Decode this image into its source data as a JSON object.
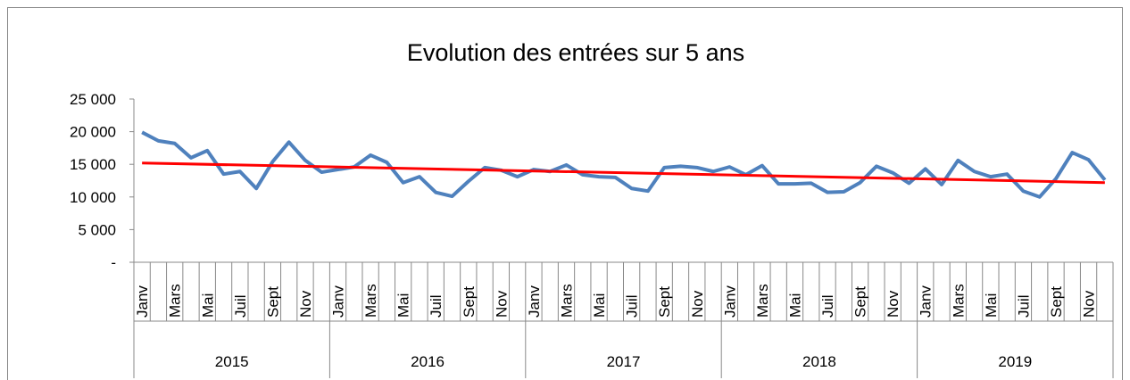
{
  "chart_data": {
    "type": "line",
    "title": "Evolution des entrées sur 5 ans",
    "categories": [
      "Janv",
      null,
      "Mars",
      null,
      "Mai",
      null,
      "Juil",
      null,
      "Sept",
      null,
      "Nov",
      null,
      "Janv",
      null,
      "Mars",
      null,
      "Mai",
      null,
      "Juil",
      null,
      "Sept",
      null,
      "Nov",
      null,
      "Janv",
      null,
      "Mars",
      null,
      "Mai",
      null,
      "Juil",
      null,
      "Sept",
      null,
      "Nov",
      null,
      "Janv",
      null,
      "Mars",
      null,
      "Mai",
      null,
      "Juil",
      null,
      "Sept",
      null,
      "Nov",
      null,
      "Janv",
      null,
      "Mars",
      null,
      "Mai",
      null,
      "Juil",
      null,
      "Sept",
      null,
      "Nov",
      null
    ],
    "groups": [
      "2015",
      "2016",
      "2017",
      "2018",
      "2019"
    ],
    "series": [
      {
        "color": "#4f81bd",
        "values": [
          19900,
          18600,
          18200,
          16000,
          17100,
          13500,
          13900,
          11300,
          15400,
          18400,
          15600,
          13800,
          14200,
          14600,
          16400,
          15300,
          12200,
          13100,
          10700,
          10100,
          12400,
          14500,
          14100,
          13100,
          14200,
          13900,
          14900,
          13400,
          13100,
          13000,
          11300,
          10900,
          14500,
          14700,
          14500,
          13900,
          14600,
          13400,
          14800,
          12000,
          12000,
          12100,
          10700,
          10800,
          12200,
          14700,
          13700,
          12100,
          14300,
          11900,
          15600,
          13900,
          13100,
          13500,
          10900,
          10000,
          12800,
          16800,
          15700,
          12600
        ]
      }
    ],
    "trend": {
      "color": "#ff0000",
      "start": 15200,
      "end": 12200
    },
    "ylim": [
      0,
      25000
    ],
    "yticks": [
      {
        "value": 0,
        "label": "-"
      },
      {
        "value": 5000,
        "label": "5 000"
      },
      {
        "value": 10000,
        "label": "10 000"
      },
      {
        "value": 15000,
        "label": "15 000"
      },
      {
        "value": 20000,
        "label": "20 000"
      },
      {
        "value": 25000,
        "label": "25 000"
      }
    ]
  }
}
